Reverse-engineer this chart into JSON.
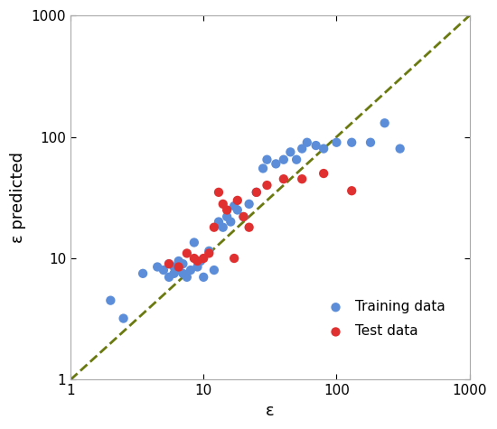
{
  "xlabel": "ε",
  "ylabel": "ε predicted",
  "xlim": [
    1,
    1000
  ],
  "ylim": [
    1,
    1000
  ],
  "line_color": "#6b7a10",
  "training_color": "#5b8dd9",
  "test_color": "#e03030",
  "train_x": [
    2.0,
    2.5,
    3.5,
    4.5,
    5.0,
    5.5,
    5.5,
    6.0,
    6.0,
    6.5,
    6.5,
    7.0,
    7.0,
    7.5,
    8.0,
    8.5,
    9.0,
    9.5,
    10.0,
    11.0,
    12.0,
    13.0,
    14.0,
    15.0,
    16.0,
    17.0,
    18.0,
    20.0,
    22.0,
    25.0,
    28.0,
    30.0,
    35.0,
    40.0,
    45.0,
    50.0,
    55.0,
    60.0,
    70.0,
    80.0,
    100.0,
    130.0,
    180.0,
    230.0,
    300.0
  ],
  "train_y": [
    4.5,
    3.2,
    7.5,
    8.5,
    8.0,
    7.0,
    9.0,
    7.5,
    8.5,
    8.0,
    9.5,
    7.5,
    9.0,
    7.0,
    8.0,
    13.5,
    8.5,
    9.5,
    7.0,
    11.5,
    8.0,
    20.0,
    18.0,
    22.0,
    20.0,
    27.0,
    25.0,
    22.0,
    28.0,
    35.0,
    55.0,
    65.0,
    60.0,
    65.0,
    75.0,
    65.0,
    80.0,
    90.0,
    85.0,
    80.0,
    90.0,
    90.0,
    90.0,
    130.0,
    80.0
  ],
  "test_x": [
    5.5,
    6.5,
    7.5,
    8.5,
    9.0,
    10.0,
    11.0,
    12.0,
    13.0,
    14.0,
    15.0,
    17.0,
    18.0,
    20.0,
    22.0,
    25.0,
    30.0,
    40.0,
    55.0,
    80.0,
    130.0
  ],
  "test_y": [
    9.0,
    8.5,
    11.0,
    10.0,
    9.5,
    10.0,
    11.0,
    18.0,
    35.0,
    28.0,
    25.0,
    10.0,
    30.0,
    22.0,
    18.0,
    35.0,
    40.0,
    45.0,
    45.0,
    50.0,
    36.0
  ],
  "marker_size": 55,
  "legend_fontsize": 11,
  "axis_fontsize": 13,
  "background_color": "#ffffff"
}
